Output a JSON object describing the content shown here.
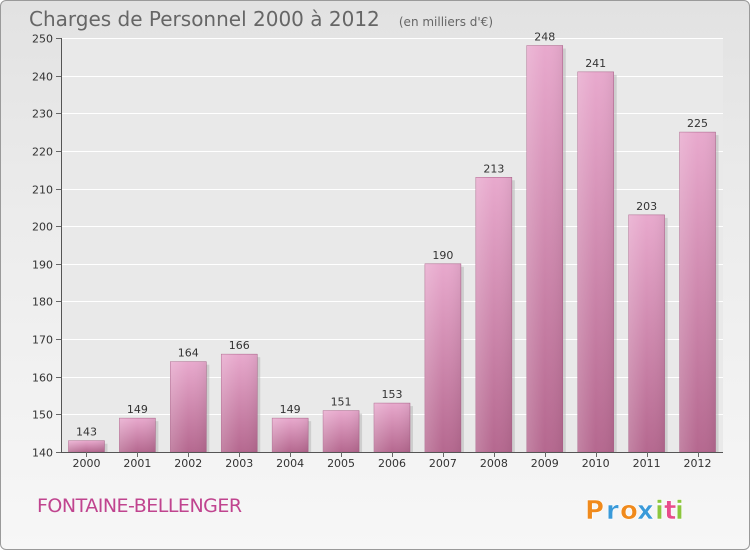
{
  "chart_data": {
    "type": "bar",
    "title": "Charges de Personnel 2000 à 2012",
    "subtitle": "(en milliers d'€)",
    "categories": [
      "2000",
      "2001",
      "2002",
      "2003",
      "2004",
      "2005",
      "2006",
      "2007",
      "2008",
      "2009",
      "2010",
      "2011",
      "2012"
    ],
    "values": [
      143,
      149,
      164,
      166,
      149,
      151,
      153,
      190,
      213,
      248,
      241,
      203,
      225
    ],
    "ylim": [
      140,
      250
    ],
    "yticks": [
      140,
      150,
      160,
      170,
      180,
      190,
      200,
      210,
      220,
      230,
      240,
      250
    ],
    "grid": true,
    "xlabel": "",
    "ylabel": "",
    "bar_color": "#c9709f",
    "bar_color_light": "#e8a9cd"
  },
  "commune": "FONTAINE-BELLENGER",
  "logo": {
    "letters": [
      "P",
      "r",
      "o",
      "x",
      "i",
      "t",
      "i"
    ],
    "colors": [
      "#f08a1c",
      "#3a9ad9",
      "#f08a1c",
      "#3a9ad9",
      "#8cc63e",
      "#e84c8b",
      "#8cc63e"
    ]
  }
}
